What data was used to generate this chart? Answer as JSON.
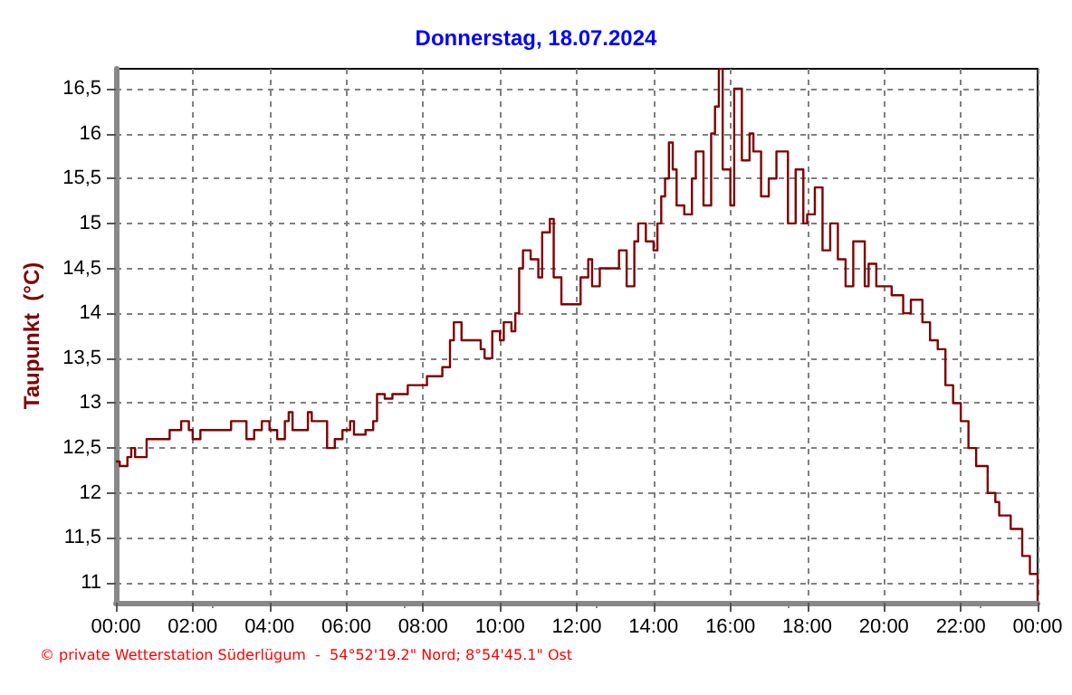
{
  "chart_data": {
    "type": "step",
    "title": "Donnerstag, 18.07.2024",
    "ylabel": "Taupunkt  (°C)",
    "annotations": [
      "© private Wetterstation Süderlügum  -  54°52'19.2\" Nord; 8°54'45.1\" Ost"
    ],
    "xlim": [
      0,
      24
    ],
    "xticks": [
      {
        "value": 0,
        "label": "00:00"
      },
      {
        "value": 2,
        "label": "02:00"
      },
      {
        "value": 4,
        "label": "04:00"
      },
      {
        "value": 6,
        "label": "06:00"
      },
      {
        "value": 8,
        "label": "08:00"
      },
      {
        "value": 10,
        "label": "10:00"
      },
      {
        "value": 12,
        "label": "12:00"
      },
      {
        "value": 14,
        "label": "14:00"
      },
      {
        "value": 16,
        "label": "16:00"
      },
      {
        "value": 18,
        "label": "18:00"
      },
      {
        "value": 20,
        "label": "20:00"
      },
      {
        "value": 22,
        "label": "22:00"
      },
      {
        "value": 24,
        "label": "00:00"
      }
    ],
    "ylim": [
      10.78,
      16.72
    ],
    "yticks": [
      {
        "value": 11,
        "label": "11"
      },
      {
        "value": 11.5,
        "label": "11,5"
      },
      {
        "value": 12,
        "label": "12"
      },
      {
        "value": 12.5,
        "label": "12,5"
      },
      {
        "value": 13,
        "label": "13"
      },
      {
        "value": 13.5,
        "label": "13,5"
      },
      {
        "value": 14,
        "label": "14"
      },
      {
        "value": 14.5,
        "label": "14,5"
      },
      {
        "value": 15,
        "label": "15"
      },
      {
        "value": 15.5,
        "label": "15,5"
      },
      {
        "value": 16,
        "label": "16"
      },
      {
        "value": 16.5,
        "label": "16,5"
      }
    ],
    "grid": true,
    "marker": "none",
    "line_style": "solid",
    "series": [
      {
        "color": "#800000",
        "x": [
          0,
          0.1,
          0.3,
          0.4,
          0.5,
          0.8,
          1.4,
          1.7,
          1.9,
          2.0,
          2.2,
          2.6,
          3.0,
          3.4,
          3.6,
          3.8,
          4.0,
          4.2,
          4.4,
          4.5,
          4.6,
          5.0,
          5.1,
          5.4,
          5.5,
          5.7,
          5.9,
          6.1,
          6.2,
          6.5,
          6.7,
          6.8,
          7.0,
          7.2,
          7.6,
          7.9,
          8.1,
          8.5,
          8.7,
          8.8,
          9.0,
          9.5,
          9.6,
          9.8,
          10.0,
          10.1,
          10.3,
          10.4,
          10.5,
          10.6,
          10.8,
          11.0,
          11.1,
          11.3,
          11.4,
          11.6,
          12.0,
          12.1,
          12.3,
          12.4,
          12.6,
          13.0,
          13.1,
          13.3,
          13.5,
          13.6,
          13.8,
          14.0,
          14.1,
          14.2,
          14.3,
          14.4,
          14.5,
          14.6,
          14.8,
          15.0,
          15.1,
          15.3,
          15.5,
          15.6,
          15.7,
          15.8,
          16.0,
          16.1,
          16.3,
          16.5,
          16.6,
          16.8,
          17.0,
          17.2,
          17.5,
          17.7,
          17.9,
          18.0,
          18.2,
          18.4,
          18.6,
          18.8,
          19.0,
          19.2,
          19.5,
          19.6,
          19.8,
          20.0,
          20.2,
          20.5,
          20.7,
          21.0,
          21.2,
          21.4,
          21.6,
          21.8,
          22.0,
          22.2,
          22.4,
          22.7,
          22.9,
          23.0,
          23.3,
          23.6,
          23.8,
          24.0
        ],
        "values": [
          12.35,
          12.3,
          12.4,
          12.5,
          12.4,
          12.6,
          12.7,
          12.8,
          12.7,
          12.6,
          12.7,
          12.7,
          12.8,
          12.6,
          12.7,
          12.8,
          12.7,
          12.6,
          12.8,
          12.9,
          12.7,
          12.9,
          12.8,
          12.8,
          12.5,
          12.6,
          12.7,
          12.8,
          12.65,
          12.7,
          12.8,
          13.1,
          13.05,
          13.1,
          13.2,
          13.2,
          13.3,
          13.4,
          13.7,
          13.9,
          13.7,
          13.6,
          13.5,
          13.8,
          13.7,
          13.9,
          13.8,
          14.0,
          14.5,
          14.7,
          14.6,
          14.4,
          14.9,
          15.05,
          14.4,
          14.1,
          14.1,
          14.4,
          14.6,
          14.3,
          14.5,
          14.5,
          14.7,
          14.3,
          14.8,
          15.0,
          14.8,
          14.7,
          15.0,
          15.3,
          15.5,
          15.9,
          15.6,
          15.2,
          15.1,
          15.5,
          15.8,
          15.2,
          16.0,
          16.3,
          16.72,
          15.6,
          15.2,
          16.5,
          15.7,
          16.0,
          15.8,
          15.3,
          15.5,
          15.8,
          15.0,
          15.6,
          15.0,
          15.1,
          15.4,
          14.7,
          15.0,
          14.6,
          14.3,
          14.8,
          14.3,
          14.55,
          14.3,
          14.3,
          14.2,
          14.0,
          14.15,
          13.9,
          13.7,
          13.6,
          13.2,
          13.0,
          12.8,
          12.5,
          12.3,
          12.0,
          11.9,
          11.75,
          11.6,
          11.3,
          11.1,
          10.8
        ]
      }
    ]
  }
}
